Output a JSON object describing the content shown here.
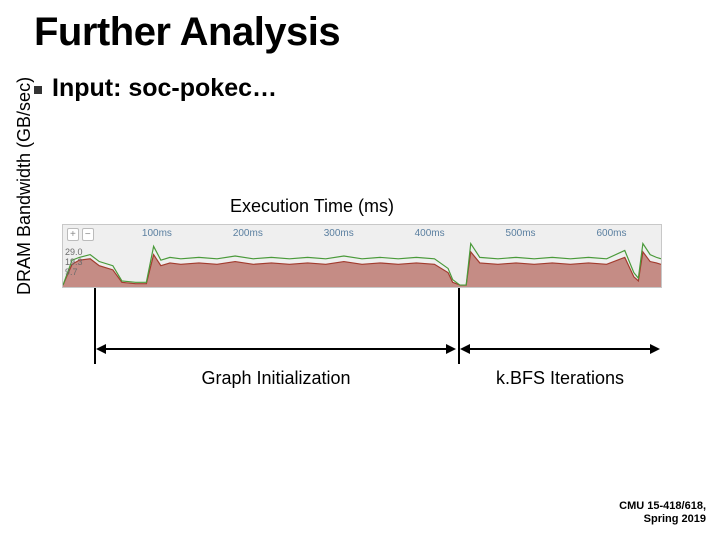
{
  "title": {
    "text": "Further Analysis",
    "fontsize": 40,
    "color": "#000000",
    "weight": 700
  },
  "bullet": {
    "text": "Input: soc-pokec…",
    "fontsize": 25,
    "color": "#000000",
    "marker_color": "#333333"
  },
  "ylabel": {
    "text": "DRAM Bandwidth (GB/sec)",
    "fontsize": 18
  },
  "exec_label": {
    "text": "Execution Time (ms)",
    "fontsize": 18
  },
  "timeline": {
    "type": "area",
    "xlim": [
      0,
      660
    ],
    "ylim": [
      0,
      35
    ],
    "x_unit": "ms",
    "x_ticks": [
      100,
      200,
      300,
      400,
      500,
      600
    ],
    "y_ticks": [
      29.0,
      19.3,
      9.7
    ],
    "tick_fontsize": 10,
    "tick_color": "#5a7fa0",
    "ylabel_color": "#6b6b6b",
    "background_color": "#efefef",
    "border_color": "#c8c8c8",
    "series": {
      "green": {
        "color": "#4a9a3a",
        "stroke_width": 1.2,
        "points": [
          [
            0,
            0
          ],
          [
            10,
            18
          ],
          [
            18,
            20
          ],
          [
            30,
            22
          ],
          [
            40,
            17
          ],
          [
            55,
            14
          ],
          [
            65,
            3
          ],
          [
            80,
            2
          ],
          [
            92,
            2
          ],
          [
            100,
            28
          ],
          [
            108,
            18
          ],
          [
            118,
            20
          ],
          [
            130,
            19
          ],
          [
            150,
            20
          ],
          [
            170,
            19
          ],
          [
            190,
            21
          ],
          [
            210,
            19
          ],
          [
            230,
            20
          ],
          [
            250,
            19
          ],
          [
            270,
            20
          ],
          [
            290,
            19
          ],
          [
            310,
            21
          ],
          [
            330,
            19
          ],
          [
            350,
            20
          ],
          [
            370,
            19
          ],
          [
            390,
            20
          ],
          [
            410,
            19
          ],
          [
            425,
            12
          ],
          [
            430,
            4
          ],
          [
            438,
            0
          ],
          [
            445,
            0
          ],
          [
            450,
            30
          ],
          [
            460,
            20
          ],
          [
            480,
            19
          ],
          [
            500,
            20
          ],
          [
            520,
            19
          ],
          [
            540,
            20
          ],
          [
            560,
            19
          ],
          [
            580,
            20
          ],
          [
            600,
            19
          ],
          [
            620,
            25
          ],
          [
            630,
            9
          ],
          [
            635,
            5
          ],
          [
            640,
            30
          ],
          [
            648,
            22
          ],
          [
            655,
            20
          ],
          [
            660,
            19
          ]
        ]
      },
      "red": {
        "color": "#a23b2e",
        "stroke_width": 1.2,
        "fill_color": "#a23b2e",
        "fill_opacity": 0.55,
        "points": [
          [
            0,
            0
          ],
          [
            10,
            15
          ],
          [
            18,
            18
          ],
          [
            30,
            19
          ],
          [
            40,
            14
          ],
          [
            55,
            11
          ],
          [
            65,
            2
          ],
          [
            80,
            1
          ],
          [
            92,
            1
          ],
          [
            100,
            22
          ],
          [
            108,
            14
          ],
          [
            118,
            16
          ],
          [
            130,
            15
          ],
          [
            150,
            16
          ],
          [
            170,
            15
          ],
          [
            190,
            17
          ],
          [
            210,
            15
          ],
          [
            230,
            16
          ],
          [
            250,
            15
          ],
          [
            270,
            16
          ],
          [
            290,
            15
          ],
          [
            310,
            17
          ],
          [
            330,
            15
          ],
          [
            350,
            16
          ],
          [
            370,
            15
          ],
          [
            390,
            16
          ],
          [
            410,
            15
          ],
          [
            425,
            9
          ],
          [
            430,
            2
          ],
          [
            438,
            0
          ],
          [
            445,
            0
          ],
          [
            450,
            24
          ],
          [
            460,
            16
          ],
          [
            480,
            15
          ],
          [
            500,
            16
          ],
          [
            520,
            15
          ],
          [
            540,
            16
          ],
          [
            560,
            15
          ],
          [
            580,
            16
          ],
          [
            600,
            15
          ],
          [
            620,
            20
          ],
          [
            630,
            6
          ],
          [
            635,
            3
          ],
          [
            640,
            24
          ],
          [
            648,
            17
          ],
          [
            655,
            16
          ],
          [
            660,
            15
          ]
        ]
      }
    },
    "dividers": {
      "color": "#000000",
      "positions_ms": [
        35,
        436
      ]
    },
    "segments": [
      {
        "label": "Graph Initialization",
        "fontsize": 18
      },
      {
        "label": "k.BFS Iterations",
        "fontsize": 18
      }
    ],
    "arrow_color": "#000000"
  },
  "footer": {
    "line1": "CMU 15-418/618,",
    "line2": "Spring 2019",
    "fontsize": 11,
    "weight": 700
  },
  "zoom": {
    "in": "+",
    "out": "−"
  }
}
